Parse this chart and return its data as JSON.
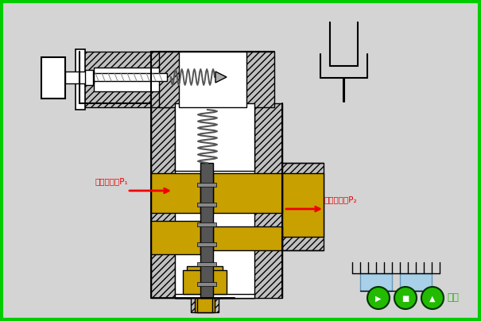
{
  "bg_color": "#d4d4d4",
  "border_color": "#00cc00",
  "border_width": 3,
  "gold_color": "#c8a000",
  "dark_gray": "#555555",
  "med_gray": "#888888",
  "light_gray": "#aaaaaa",
  "hatch_fill": "#c0c0c0",
  "black": "#000000",
  "white": "#ffffff",
  "red": "#ee0000",
  "green_btn": "#22bb00",
  "label1": "一次压力油P₁",
  "label2": "二次压力油P₂",
  "label_back": "返回",
  "light_blue": "#a8d0e8"
}
